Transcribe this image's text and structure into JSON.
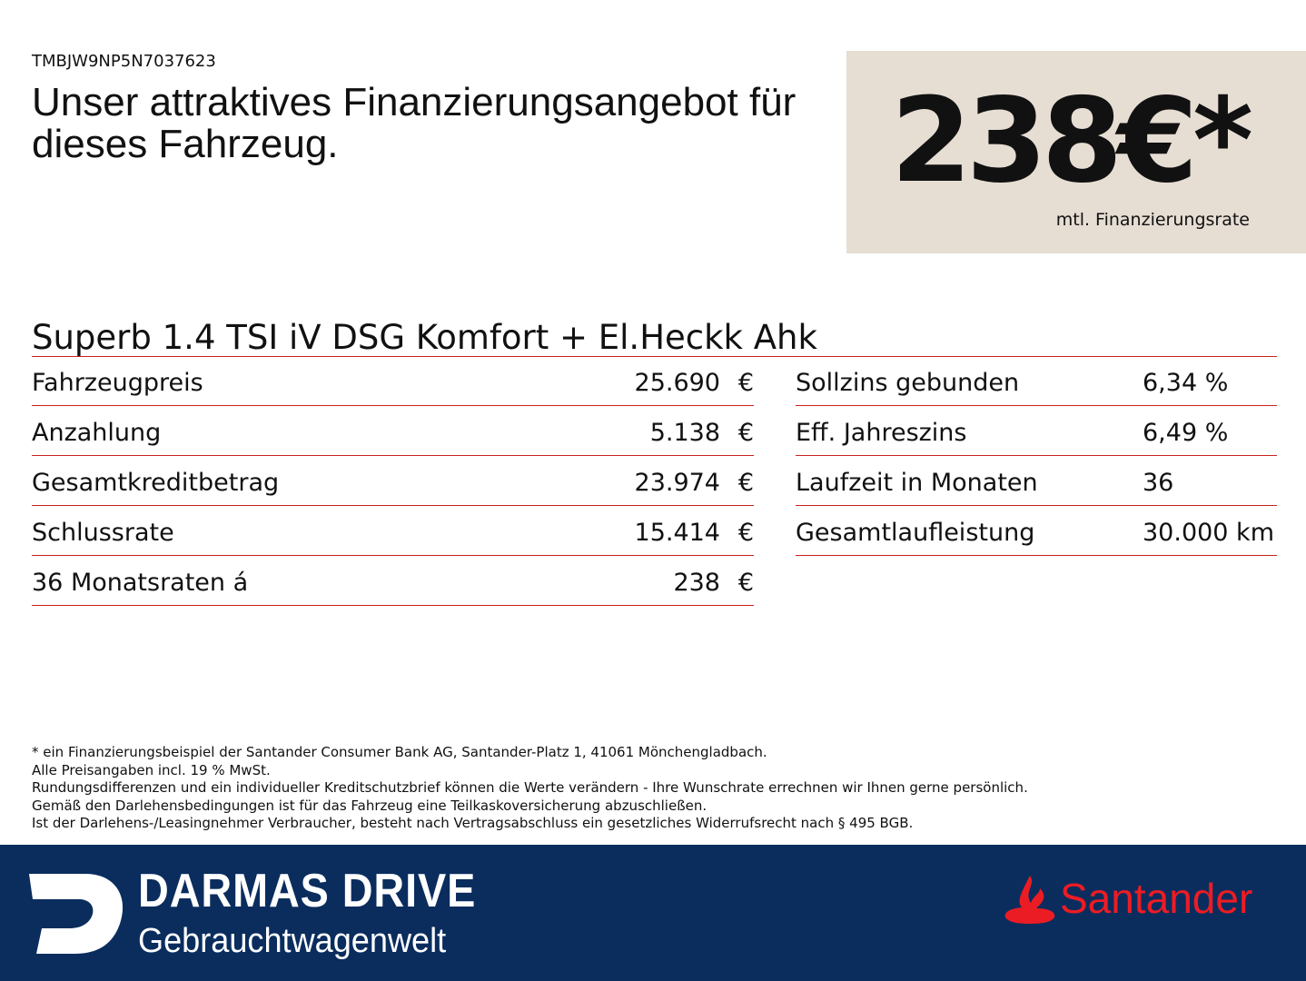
{
  "vin": "TMBJW9NP5N7037623",
  "heading": "Unser attraktives Finanzierungsangebot für dieses Fahrzeug.",
  "price": {
    "value": "238€*",
    "label": "mtl. Finanzierungsrate"
  },
  "model": "Superb 1.4 TSI iV DSG Komfort + El.Heckk Ahk",
  "left_rows": [
    {
      "label": "Fahrzeugpreis",
      "value": "25.690",
      "unit": "€"
    },
    {
      "label": "Anzahlung",
      "value": "5.138",
      "unit": "€"
    },
    {
      "label": "Gesamtkreditbetrag",
      "value": "23.974",
      "unit": "€"
    },
    {
      "label": "Schlussrate",
      "value": "15.414",
      "unit": "€"
    },
    {
      "label": "36 Monatsraten á",
      "value": "238",
      "unit": "€"
    }
  ],
  "right_rows": [
    {
      "label": "Sollzins gebunden",
      "value": "6,34 %"
    },
    {
      "label": "Eff. Jahreszins",
      "value": "6,49 %"
    },
    {
      "label": "Laufzeit in Monaten",
      "value": "36"
    },
    {
      "label": "Gesamtlaufleistung",
      "value": "30.000 km"
    }
  ],
  "notes": [
    "* ein Finanzierungsbeispiel der Santander Consumer Bank AG, Santander-Platz 1, 41061 Mönchengladbach.",
    "Alle Preisangaben incl. 19 % MwSt.",
    "Rundungsdifferenzen und ein individueller Kreditschutzbrief können die Werte verändern - Ihre Wunschrate errechnen wir Ihnen gerne persönlich.",
    "Gemäß den Darlehensbedingungen ist für das Fahrzeug eine Teilkaskoversicherung abzuschließen.",
    "Ist der Darlehens-/Leasingnehmer Verbraucher, besteht nach Vertragsabschluss ein gesetzliches Widerrufsrecht nach § 495 BGB."
  ],
  "footer": {
    "dealer_name": "DARMAS DRIVE",
    "dealer_sub": "Gebrauchtwagenwelt",
    "bank": "Santander"
  },
  "colors": {
    "footer_bg": "#0a2d5e",
    "price_box": "#e6ddd3",
    "rule": "#c8201e",
    "santander_red": "#ec1c24"
  }
}
